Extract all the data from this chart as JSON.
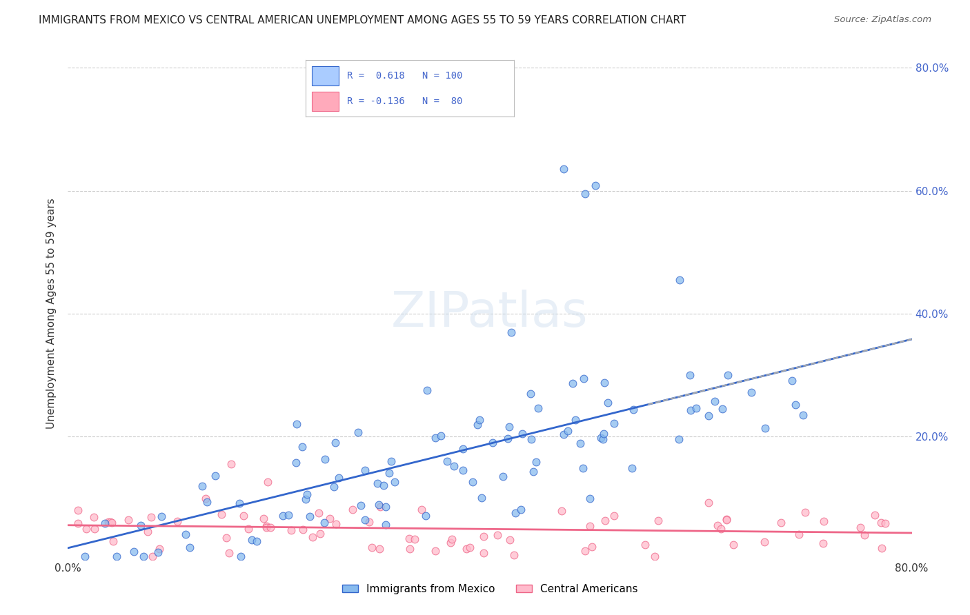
{
  "title": "IMMIGRANTS FROM MEXICO VS CENTRAL AMERICAN UNEMPLOYMENT AMONG AGES 55 TO 59 YEARS CORRELATION CHART",
  "source": "Source: ZipAtlas.com",
  "xlabel": "",
  "ylabel": "Unemployment Among Ages 55 to 59 years",
  "xlim": [
    0.0,
    0.8
  ],
  "ylim": [
    0.0,
    0.8
  ],
  "background_color": "#ffffff",
  "plot_bg_color": "#ffffff",
  "grid_color": "#cccccc",
  "watermark": "ZIPatlas",
  "legend_box": {
    "r1_color": "#aaccff",
    "r2_color": "#ffaabb",
    "r1_text": "R =  0.618   N = 100",
    "r2_text": "R = -0.136   N =  80",
    "text_color": "#4466cc"
  },
  "series_mexico": {
    "color": "#88bbee",
    "line_color": "#3366cc",
    "label": "Immigrants from Mexico",
    "R": 0.618,
    "N": 100
  },
  "series_central": {
    "color": "#ffbbcc",
    "line_color": "#ee6688",
    "label": "Central Americans",
    "R": -0.136,
    "N": 80
  }
}
